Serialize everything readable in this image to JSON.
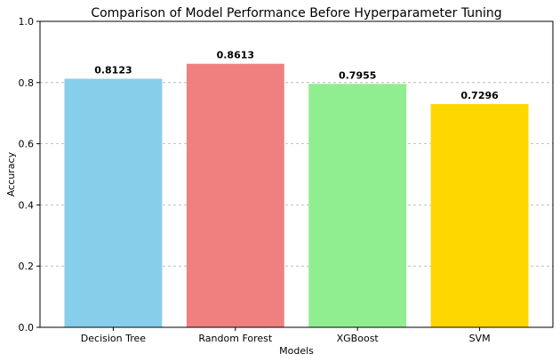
{
  "chart_data": {
    "type": "bar",
    "title": "Comparison of Model Performance Before Hyperparameter Tuning",
    "xlabel": "Models",
    "ylabel": "Accuracy",
    "categories": [
      "Decision Tree",
      "Random Forest",
      "XGBoost",
      "SVM"
    ],
    "values": [
      0.8123,
      0.8613,
      0.7955,
      0.7296
    ],
    "value_labels": [
      "0.8123",
      "0.8613",
      "0.7955",
      "0.7296"
    ],
    "colors": [
      "#87CEEB",
      "#F08080",
      "#90EE90",
      "#FFD700"
    ],
    "ylim": [
      0,
      1.0
    ],
    "yticks": [
      0.0,
      0.2,
      0.4,
      0.6,
      0.8,
      1.0
    ],
    "ytick_labels": [
      "0.0",
      "0.2",
      "0.4",
      "0.6",
      "0.8",
      "1.0"
    ],
    "grid": "y-dashed"
  }
}
